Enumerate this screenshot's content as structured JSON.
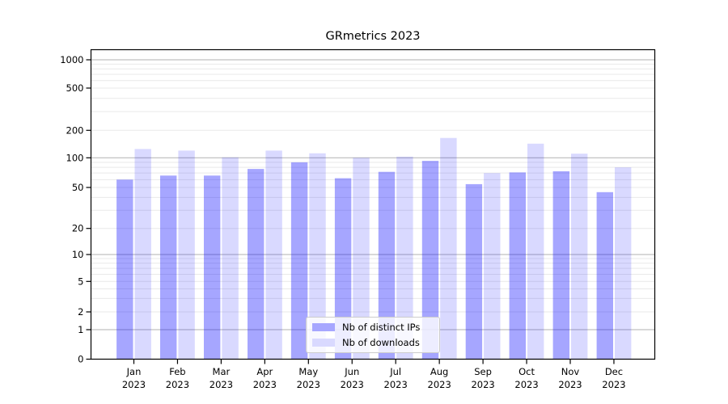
{
  "figure": {
    "background": "#ffffff"
  },
  "chart_data": {
    "type": "bar",
    "title": "GRmetrics 2023",
    "categories": [
      "Jan",
      "Feb",
      "Mar",
      "Apr",
      "May",
      "Jun",
      "Jul",
      "Aug",
      "Sep",
      "Oct",
      "Nov",
      "Dec"
    ],
    "category_year": "2023",
    "series": [
      {
        "name": "Nb of distinct IPs",
        "color": "rgba(0,0,255,0.35)",
        "solid_color": "#a6a6ff",
        "values": [
          60,
          66,
          66,
          77,
          90,
          62,
          72,
          93,
          54,
          71,
          73,
          45
        ]
      },
      {
        "name": "Nb of downloads",
        "color": "rgba(0,0,255,0.15)",
        "solid_color": "#d9d9ff",
        "values": [
          125,
          120,
          101,
          120,
          112,
          100,
          103,
          165,
          70,
          143,
          111,
          80
        ]
      }
    ],
    "yscale": "symlog",
    "ylim": [
      0,
      1300
    ],
    "y_ticks": [
      0,
      1,
      2,
      5,
      10,
      20,
      50,
      100,
      200,
      500,
      1000
    ],
    "major_grid_values": [
      1,
      10,
      100,
      1000
    ],
    "minor_grid_decades": [
      1,
      10,
      100
    ],
    "minor_grid_subs": [
      2,
      3,
      4,
      5,
      6,
      7,
      8,
      9
    ],
    "grid": true,
    "legend_position": "lower center",
    "colors": {
      "axis": "#000000",
      "tick_label": "#000000",
      "grid_major": "#b2b2b2",
      "grid_minor": "#e9e9e9"
    }
  }
}
